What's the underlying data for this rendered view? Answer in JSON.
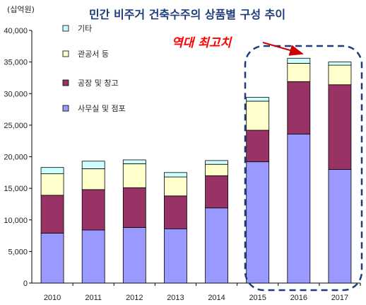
{
  "chart_data": {
    "type": "bar",
    "stacked": true,
    "title": "민간 비주거 건축수주의 상품별 구성 추이",
    "unit_label": "(십억원)",
    "categories": [
      "2010",
      "2011",
      "2012",
      "2013",
      "2014",
      "2015",
      "2016",
      "2017"
    ],
    "ylim": [
      0,
      40000
    ],
    "yticks": [
      "0",
      "5,000",
      "10,000",
      "15,000",
      "20,000",
      "25,000",
      "30,000",
      "35,000",
      "40,000"
    ],
    "series": [
      {
        "name": "사무실 및 점포",
        "color": "#9999ff",
        "values": [
          7900,
          8400,
          8800,
          8600,
          11900,
          19200,
          23600,
          18000
        ]
      },
      {
        "name": "공장 및 창고",
        "color": "#993366",
        "values": [
          6000,
          6400,
          6300,
          5200,
          5100,
          5000,
          8300,
          13400
        ]
      },
      {
        "name": "관공서 등",
        "color": "#ffffcc",
        "values": [
          3400,
          3300,
          3800,
          3000,
          1800,
          4600,
          2900,
          3100
        ]
      },
      {
        "name": "기타",
        "color": "#ccffff",
        "values": [
          1000,
          1200,
          600,
          700,
          600,
          600,
          800,
          500
        ]
      }
    ],
    "legend_order": [
      "기타",
      "관공서 등",
      "공장 및 창고",
      "사무실 및 점포"
    ],
    "annotation": {
      "text": "역대 최고치",
      "color": "#ff0000",
      "highlight": [
        "2015",
        "2016",
        "2017"
      ]
    },
    "colors": {
      "title": "#1f3d7a",
      "highlight_border": "#1f3d7a",
      "axis": "#000000"
    }
  }
}
